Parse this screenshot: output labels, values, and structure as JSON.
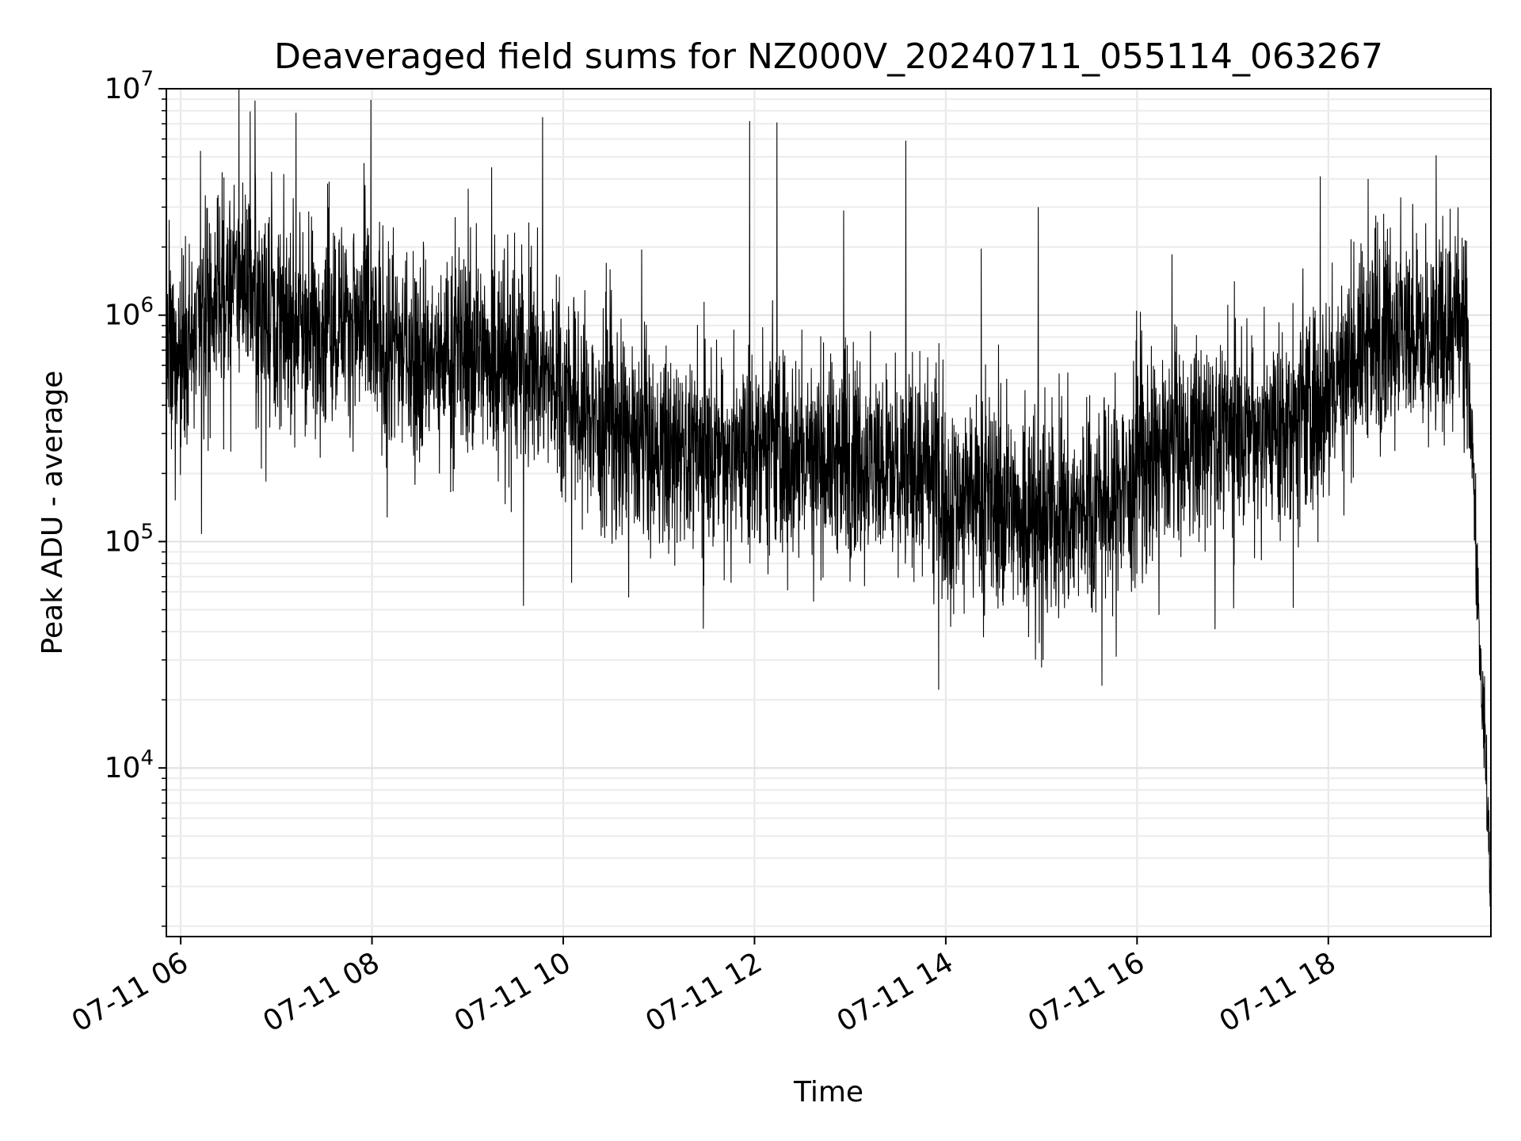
{
  "chart_data": {
    "type": "line",
    "title": "Deaveraged field sums for NZ000V_20240711_055114_063267",
    "xlabel": "Time",
    "ylabel": "Peak ADU - average",
    "yscale": "log",
    "ylim": [
      1800,
      10000000
    ],
    "xlim": [
      "2024-07-11 05:51",
      "2024-07-11 19:42"
    ],
    "grid": true,
    "line_color": "#000000",
    "x_ticks": [
      {
        "value": "2024-07-11 06:00",
        "label": "07-11 06"
      },
      {
        "value": "2024-07-11 08:00",
        "label": "07-11 08"
      },
      {
        "value": "2024-07-11 10:00",
        "label": "07-11 10"
      },
      {
        "value": "2024-07-11 12:00",
        "label": "07-11 12"
      },
      {
        "value": "2024-07-11 14:00",
        "label": "07-11 14"
      },
      {
        "value": "2024-07-11 16:00",
        "label": "07-11 16"
      },
      {
        "value": "2024-07-11 18:00",
        "label": "07-11 18"
      }
    ],
    "y_ticks": [
      {
        "value": 10000,
        "base": "10",
        "exp": "4"
      },
      {
        "value": 100000,
        "base": "10",
        "exp": "5"
      },
      {
        "value": 1000000,
        "base": "10",
        "exp": "6"
      },
      {
        "value": 10000000,
        "base": "10",
        "exp": "7"
      }
    ],
    "series": [
      {
        "x": [
          "2024-07-11 05:51",
          "2024-07-11 06:00",
          "2024-07-11 06:15",
          "2024-07-11 06:30",
          "2024-07-11 06:40",
          "2024-07-11 07:00",
          "2024-07-11 07:20",
          "2024-07-11 07:40",
          "2024-07-11 08:00",
          "2024-07-11 08:20",
          "2024-07-11 08:40",
          "2024-07-11 09:00",
          "2024-07-11 09:20",
          "2024-07-11 09:40",
          "2024-07-11 10:00",
          "2024-07-11 10:20",
          "2024-07-11 10:40",
          "2024-07-11 11:00",
          "2024-07-11 11:20",
          "2024-07-11 11:40",
          "2024-07-11 12:00",
          "2024-07-11 12:20",
          "2024-07-11 12:40",
          "2024-07-11 13:00",
          "2024-07-11 13:20",
          "2024-07-11 13:40",
          "2024-07-11 14:00",
          "2024-07-11 14:20",
          "2024-07-11 14:40",
          "2024-07-11 15:00",
          "2024-07-11 15:20",
          "2024-07-11 15:40",
          "2024-07-11 16:00",
          "2024-07-11 16:20",
          "2024-07-11 16:40",
          "2024-07-11 17:00",
          "2024-07-11 17:20",
          "2024-07-11 17:40",
          "2024-07-11 18:00",
          "2024-07-11 18:20",
          "2024-07-11 18:40",
          "2024-07-11 19:00",
          "2024-07-11 19:15",
          "2024-07-11 19:25",
          "2024-07-11 19:30",
          "2024-07-11 19:33",
          "2024-07-11 19:36",
          "2024-07-11 19:38",
          "2024-07-11 19:40",
          "2024-07-11 19:42"
        ],
        "y": [
          550000,
          650000,
          900000,
          1300000,
          1500000,
          1000000,
          900000,
          1000000,
          800000,
          700000,
          600000,
          700000,
          650000,
          600000,
          450000,
          350000,
          280000,
          250000,
          240000,
          250000,
          260000,
          250000,
          230000,
          230000,
          220000,
          210000,
          170000,
          150000,
          140000,
          130000,
          130000,
          150000,
          200000,
          250000,
          280000,
          300000,
          320000,
          330000,
          450000,
          700000,
          900000,
          800000,
          850000,
          900000,
          300000,
          80000,
          25000,
          14000,
          6000,
          3000
        ],
        "spikes": [
          {
            "x": "2024-07-11 06:57",
            "y": 4300000
          },
          {
            "x": "2024-07-11 07:55",
            "y": 4700000
          },
          {
            "x": "2024-07-11 09:15",
            "y": 4500000
          },
          {
            "x": "2024-07-11 09:47",
            "y": 7500000
          },
          {
            "x": "2024-07-11 11:57",
            "y": 7200000
          },
          {
            "x": "2024-07-11 12:14",
            "y": 7100000
          },
          {
            "x": "2024-07-11 13:35",
            "y": 5900000
          },
          {
            "x": "2024-07-11 12:56",
            "y": 2900000
          },
          {
            "x": "2024-07-11 14:58",
            "y": 3000000
          },
          {
            "x": "2024-07-11 17:55",
            "y": 4100000
          },
          {
            "x": "2024-07-11 18:25",
            "y": 4000000
          },
          {
            "x": "2024-07-11 18:53",
            "y": 3100000
          }
        ],
        "dips": [
          {
            "x": "2024-07-11 06:13",
            "y": 108000
          },
          {
            "x": "2024-07-11 09:35",
            "y": 52000
          },
          {
            "x": "2024-07-11 14:03",
            "y": 42000
          },
          {
            "x": "2024-07-11 15:01",
            "y": 30000
          },
          {
            "x": "2024-07-11 15:47",
            "y": 31000
          },
          {
            "x": "2024-07-11 16:49",
            "y": 41000
          },
          {
            "x": "2024-07-11 17:38",
            "y": 51000
          }
        ]
      }
    ]
  }
}
